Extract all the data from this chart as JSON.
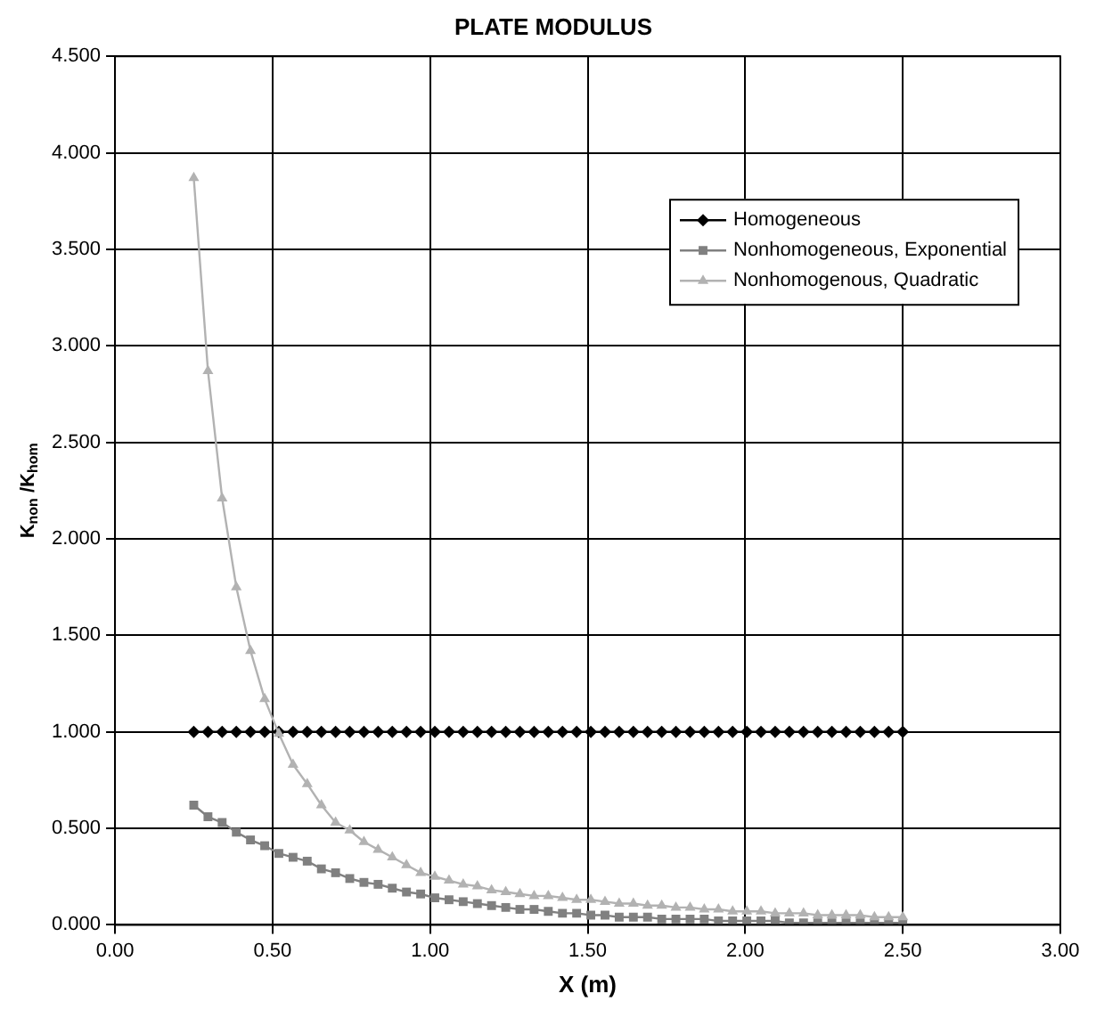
{
  "chart_data": {
    "type": "line",
    "title": "PLATE MODULUS",
    "xlabel": "X (m)",
    "ylabel": "K$_{non}$ /K$_{hom}$",
    "x": [
      0.25,
      0.295,
      0.34,
      0.385,
      0.43,
      0.475,
      0.52,
      0.565,
      0.61,
      0.655,
      0.7,
      0.745,
      0.79,
      0.835,
      0.88,
      0.925,
      0.97,
      1.015,
      1.06,
      1.105,
      1.15,
      1.195,
      1.24,
      1.285,
      1.33,
      1.375,
      1.42,
      1.465,
      1.51,
      1.555,
      1.6,
      1.645,
      1.69,
      1.735,
      1.78,
      1.825,
      1.87,
      1.915,
      1.96,
      2.005,
      2.05,
      2.095,
      2.14,
      2.185,
      2.23,
      2.275,
      2.32,
      2.365,
      2.41,
      2.455,
      2.5
    ],
    "series": [
      {
        "name": "Homogeneous",
        "color": "#000000",
        "marker": "diamond",
        "values": [
          1,
          1,
          1,
          1,
          1,
          1,
          1,
          1,
          1,
          1,
          1,
          1,
          1,
          1,
          1,
          1,
          1,
          1,
          1,
          1,
          1,
          1,
          1,
          1,
          1,
          1,
          1,
          1,
          1,
          1,
          1,
          1,
          1,
          1,
          1,
          1,
          1,
          1,
          1,
          1,
          1,
          1,
          1,
          1,
          1,
          1,
          1,
          1,
          1,
          1,
          1
        ]
      },
      {
        "name": "Nonhomogeneous, Exponential",
        "color": "#808080",
        "marker": "square",
        "values": [
          0.62,
          0.56,
          0.53,
          0.48,
          0.44,
          0.41,
          0.37,
          0.35,
          0.33,
          0.29,
          0.27,
          0.24,
          0.22,
          0.21,
          0.19,
          0.17,
          0.16,
          0.14,
          0.13,
          0.12,
          0.11,
          0.1,
          0.09,
          0.08,
          0.08,
          0.07,
          0.06,
          0.06,
          0.05,
          0.05,
          0.04,
          0.04,
          0.04,
          0.03,
          0.03,
          0.03,
          0.03,
          0.02,
          0.02,
          0.02,
          0.02,
          0.02,
          0.01,
          0.01,
          0.01,
          0.01,
          0.01,
          0.01,
          0.01,
          0.01,
          0.01
        ]
      },
      {
        "name": "Nonhomogenous, Quadratic",
        "color": "#b2b2b2",
        "marker": "triangle",
        "values": [
          3.87,
          2.87,
          2.21,
          1.75,
          1.42,
          1.17,
          0.99,
          0.83,
          0.73,
          0.62,
          0.53,
          0.49,
          0.43,
          0.39,
          0.35,
          0.31,
          0.27,
          0.25,
          0.23,
          0.21,
          0.2,
          0.18,
          0.17,
          0.16,
          0.15,
          0.15,
          0.14,
          0.13,
          0.13,
          0.12,
          0.11,
          0.11,
          0.1,
          0.1,
          0.09,
          0.09,
          0.08,
          0.08,
          0.07,
          0.07,
          0.07,
          0.06,
          0.06,
          0.06,
          0.05,
          0.05,
          0.05,
          0.05,
          0.04,
          0.04,
          0.04
        ]
      }
    ],
    "xlim": [
      0,
      3
    ],
    "xticks": [
      {
        "value": 0,
        "label": "0.00"
      },
      {
        "value": 0.5,
        "label": "0.50"
      },
      {
        "value": 1,
        "label": "1.00"
      },
      {
        "value": 1.5,
        "label": "1.50"
      },
      {
        "value": 2,
        "label": "2.00"
      },
      {
        "value": 2.5,
        "label": "2.50"
      },
      {
        "value": 3,
        "label": "3.00"
      }
    ],
    "ylim": [
      0,
      4.5
    ],
    "yticks": [
      {
        "value": 0,
        "label": "0.000"
      },
      {
        "value": 0.5,
        "label": "0.500"
      },
      {
        "value": 1,
        "label": "1.000"
      },
      {
        "value": 1.5,
        "label": "1.500"
      },
      {
        "value": 2,
        "label": "2.000"
      },
      {
        "value": 2.5,
        "label": "2.500"
      },
      {
        "value": 3,
        "label": "3.000"
      },
      {
        "value": 3.5,
        "label": "3.500"
      },
      {
        "value": 4,
        "label": "4.000"
      },
      {
        "value": 4.5,
        "label": "4.500"
      }
    ],
    "grid": true,
    "legend": "top right",
    "line_style": "solid"
  }
}
